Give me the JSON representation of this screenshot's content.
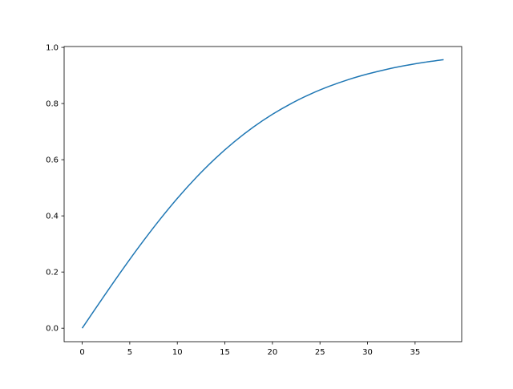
{
  "chart_data": {
    "type": "line",
    "title": "",
    "xlabel": "",
    "ylabel": "",
    "xlim": [
      -1.9,
      39.9
    ],
    "ylim": [
      -0.048,
      1.003
    ],
    "grid": false,
    "xticks": [
      0,
      5,
      10,
      15,
      20,
      25,
      30,
      35
    ],
    "xtick_labels": [
      "0",
      "5",
      "10",
      "15",
      "20",
      "25",
      "30",
      "35"
    ],
    "yticks": [
      0.0,
      0.2,
      0.4,
      0.6,
      0.8,
      1.0
    ],
    "ytick_labels": [
      "0.0",
      "0.2",
      "0.4",
      "0.6",
      "0.8",
      "1.0"
    ],
    "series": [
      {
        "color": "#1f77b4",
        "x": [
          0,
          2,
          4,
          6,
          8,
          10,
          12,
          14,
          16,
          18,
          20,
          22,
          24,
          26,
          28,
          30,
          32,
          34,
          36,
          38
        ],
        "y": [
          0,
          0.0997,
          0.1974,
          0.2913,
          0.3799,
          0.4621,
          0.537,
          0.6044,
          0.664,
          0.7163,
          0.7616,
          0.8005,
          0.8337,
          0.8617,
          0.8854,
          0.9051,
          0.9217,
          0.9354,
          0.9468,
          0.9562
        ]
      }
    ]
  }
}
